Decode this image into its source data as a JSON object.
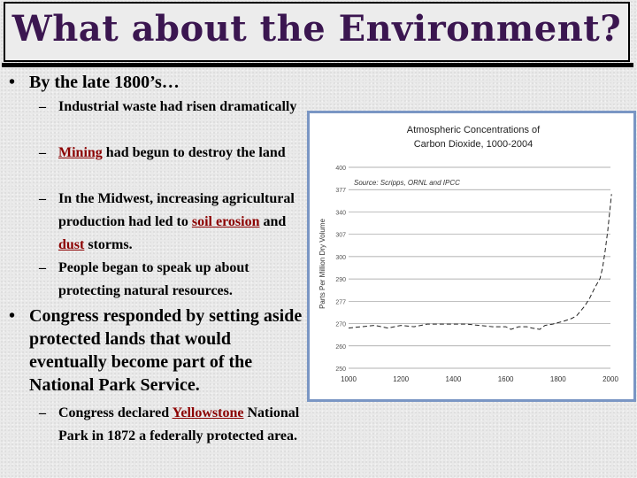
{
  "slide": {
    "title": "What about the Environment?",
    "bullets": {
      "b1": "By the late 1800’s…",
      "b1_sub": [
        "Industrial waste had risen dramatically",
        "had begun to destroy the land",
        "In the Midwest, increasing agricultural production had led to",
        "and",
        "storms.",
        "People began to speak up about protecting natural resources."
      ],
      "mining": "Mining",
      "soil_erosion": "soil erosion",
      "dust": "dust",
      "b2": "Congress responded by setting aside protected lands that would eventually become part of the National Park Service.",
      "b2_sub_pre": "Congress declared",
      "yellowstone": "Yellowstone",
      "b2_sub_post": "National Park in 1872 a federally protected area.",
      "dot": "•",
      "dash": "–"
    }
  },
  "chart_data": {
    "type": "line",
    "title": "Atmospheric Concentrations of",
    "subtitle": "Carbon Dioxide, 1000-2004",
    "source": "Source: Scripps, ORNL and IPCC",
    "ylabel": "Parts Per Million Dry Volume",
    "xlim": [
      1000,
      2000
    ],
    "ylim": [
      250,
      400
    ],
    "x_ticks": [
      "1000",
      "1200",
      "1400",
      "1600",
      "1800",
      "2000"
    ],
    "y_ticks": [
      "400",
      "377",
      "340",
      "307",
      "300",
      "290",
      "277",
      "270",
      "260",
      "250"
    ],
    "series": [
      {
        "x": [
          1000,
          1050,
          1100,
          1150,
          1200,
          1250,
          1300,
          1350,
          1400,
          1450,
          1500,
          1550,
          1600,
          1620,
          1650,
          1680,
          1700,
          1730,
          1750,
          1780,
          1800,
          1820,
          1850,
          1870,
          1900,
          1920,
          1940,
          1960,
          1970,
          1980,
          1990,
          2004
        ],
        "y": [
          280,
          281,
          282,
          280,
          282,
          281,
          283,
          283,
          283,
          283,
          282,
          281,
          281,
          279,
          281,
          281,
          280,
          279,
          282,
          283,
          284,
          285,
          287,
          289,
          296,
          302,
          310,
          317,
          325,
          338,
          353,
          380
        ]
      }
    ]
  }
}
